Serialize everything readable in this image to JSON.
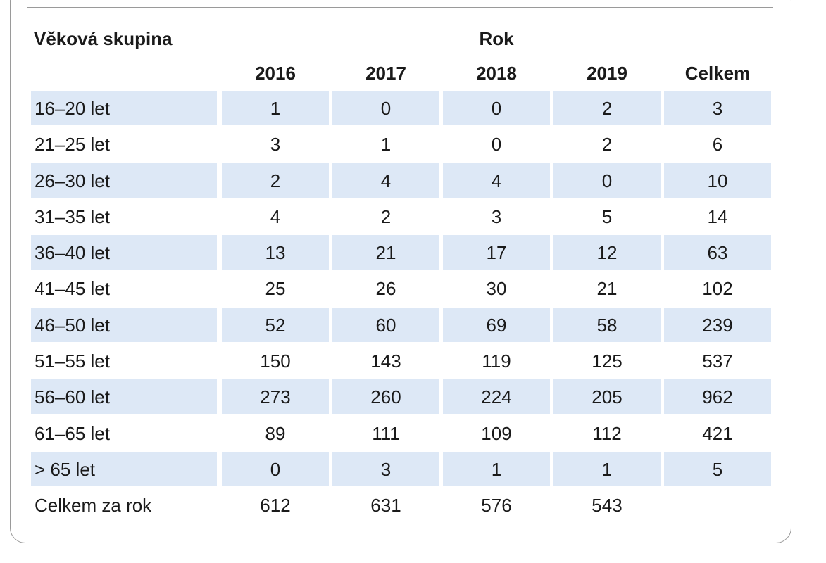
{
  "table": {
    "age_group_header": "Věková skupina",
    "year_group_header": "Rok",
    "columns": [
      "2016",
      "2017",
      "2018",
      "2019",
      "Celkem"
    ],
    "rows": [
      {
        "label": "16–20 let",
        "values": [
          "1",
          "0",
          "0",
          "2",
          "3"
        ],
        "shaded": true
      },
      {
        "label": "21–25 let",
        "values": [
          "3",
          "1",
          "0",
          "2",
          "6"
        ],
        "shaded": false
      },
      {
        "label": "26–30 let",
        "values": [
          "2",
          "4",
          "4",
          "0",
          "10"
        ],
        "shaded": true
      },
      {
        "label": "31–35 let",
        "values": [
          "4",
          "2",
          "3",
          "5",
          "14"
        ],
        "shaded": false
      },
      {
        "label": "36–40 let",
        "values": [
          "13",
          "21",
          "17",
          "12",
          "63"
        ],
        "shaded": true
      },
      {
        "label": "41–45 let",
        "values": [
          "25",
          "26",
          "30",
          "21",
          "102"
        ],
        "shaded": false
      },
      {
        "label": "46–50 let",
        "values": [
          "52",
          "60",
          "69",
          "58",
          "239"
        ],
        "shaded": true
      },
      {
        "label": "51–55 let",
        "values": [
          "150",
          "143",
          "119",
          "125",
          "537"
        ],
        "shaded": false
      },
      {
        "label": "56–60 let",
        "values": [
          "273",
          "260",
          "224",
          "205",
          "962"
        ],
        "shaded": true
      },
      {
        "label": "61–65 let",
        "values": [
          "89",
          "111",
          "109",
          "112",
          "421"
        ],
        "shaded": false
      },
      {
        "label": "> 65 let",
        "values": [
          "0",
          "3",
          "1",
          "1",
          "5"
        ],
        "shaded": true
      }
    ],
    "total_row": {
      "label": "Celkem za rok",
      "values": [
        "612",
        "631",
        "576",
        "543",
        ""
      ]
    },
    "shade_color": "#dde8f6"
  }
}
